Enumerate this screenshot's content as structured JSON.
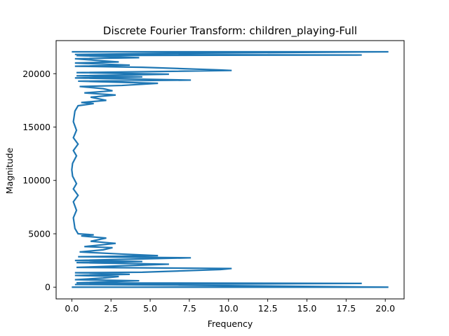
{
  "chart_data": {
    "type": "line",
    "title": "Discrete Fourier Transform: children_playing-Full",
    "xlabel": "Frequency",
    "ylabel": "Magnitude",
    "xlim": [
      -1.0,
      21.2
    ],
    "ylim": [
      -1100,
      23100
    ],
    "xticks": [
      "0.0",
      "2.5",
      "5.0",
      "7.5",
      "10.0",
      "12.5",
      "15.0",
      "17.5",
      "20.0"
    ],
    "xtick_values": [
      0,
      2.5,
      5,
      7.5,
      10,
      12.5,
      15,
      17.5,
      20
    ],
    "yticks": [
      "0",
      "5000",
      "10000",
      "15000",
      "20000"
    ],
    "ytick_values": [
      0,
      5000,
      10000,
      15000,
      20000
    ],
    "grid": false,
    "series": [
      {
        "color": "#1f77b4",
        "points": [
          [
            0.0,
            0
          ],
          [
            20.2,
            0
          ],
          [
            5.5,
            200
          ],
          [
            0.2,
            250
          ],
          [
            18.5,
            350
          ],
          [
            0.3,
            400
          ],
          [
            4.3,
            600
          ],
          [
            0.2,
            700
          ],
          [
            2.0,
            850
          ],
          [
            3.0,
            1000
          ],
          [
            0.2,
            1100
          ],
          [
            3.7,
            1200
          ],
          [
            0.2,
            1350
          ],
          [
            4.5,
            1400
          ],
          [
            9.5,
            1650
          ],
          [
            10.2,
            1750
          ],
          [
            0.3,
            1850
          ],
          [
            6.2,
            2150
          ],
          [
            0.3,
            2300
          ],
          [
            4.5,
            2400
          ],
          [
            0.2,
            2500
          ],
          [
            7.6,
            2750
          ],
          [
            0.4,
            2850
          ],
          [
            5.5,
            2950
          ],
          [
            3.2,
            3100
          ],
          [
            0.5,
            3300
          ],
          [
            2.0,
            3500
          ],
          [
            2.6,
            3700
          ],
          [
            0.8,
            3800
          ],
          [
            2.8,
            4100
          ],
          [
            1.2,
            4300
          ],
          [
            2.2,
            4600
          ],
          [
            0.6,
            4800
          ],
          [
            1.4,
            4900
          ],
          [
            0.4,
            5000
          ],
          [
            0.2,
            5500
          ],
          [
            0.1,
            6500
          ],
          [
            0.3,
            7200
          ],
          [
            0.1,
            8000
          ],
          [
            0.4,
            8600
          ],
          [
            0.1,
            9200
          ],
          [
            0.3,
            9700
          ],
          [
            0.05,
            10400
          ],
          [
            0.0,
            11000
          ],
          [
            0.05,
            11600
          ],
          [
            0.3,
            12300
          ],
          [
            0.1,
            12800
          ],
          [
            0.4,
            13400
          ],
          [
            0.1,
            14000
          ],
          [
            0.3,
            14700
          ],
          [
            0.1,
            15500
          ],
          [
            0.2,
            16500
          ],
          [
            0.4,
            17000
          ],
          [
            1.4,
            17200
          ],
          [
            0.6,
            17300
          ],
          [
            2.2,
            17500
          ],
          [
            1.2,
            17800
          ],
          [
            2.8,
            18000
          ],
          [
            0.8,
            18200
          ],
          [
            2.6,
            18400
          ],
          [
            2.0,
            18600
          ],
          [
            0.5,
            18800
          ],
          [
            3.2,
            18900
          ],
          [
            5.5,
            19100
          ],
          [
            0.4,
            19300
          ],
          [
            7.6,
            19400
          ],
          [
            0.2,
            19600
          ],
          [
            4.5,
            19700
          ],
          [
            0.3,
            19800
          ],
          [
            6.2,
            19950
          ],
          [
            0.3,
            20100
          ],
          [
            10.2,
            20300
          ],
          [
            9.5,
            20350
          ],
          [
            4.5,
            20600
          ],
          [
            0.2,
            20700
          ],
          [
            3.7,
            20800
          ],
          [
            0.2,
            21000
          ],
          [
            3.0,
            21100
          ],
          [
            2.0,
            21200
          ],
          [
            0.2,
            21400
          ],
          [
            4.3,
            21500
          ],
          [
            0.3,
            21700
          ],
          [
            18.5,
            21750
          ],
          [
            0.2,
            21800
          ],
          [
            5.5,
            21900
          ],
          [
            20.2,
            22050
          ],
          [
            0.0,
            22050
          ]
        ]
      }
    ]
  }
}
